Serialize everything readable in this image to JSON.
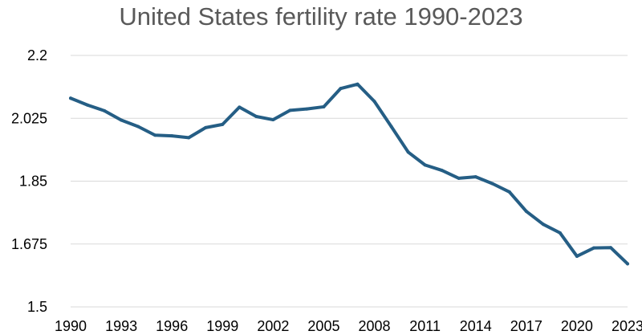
{
  "chart_data": {
    "type": "line",
    "title": "United States fertility rate 1990-2023",
    "xlabel": "",
    "ylabel": "",
    "ylim": [
      1.5,
      2.2
    ],
    "yticks": [
      "2.2",
      "2.025",
      "1.85",
      "1.675",
      "1.5"
    ],
    "ytick_values": [
      2.2,
      2.025,
      1.85,
      1.675,
      1.5
    ],
    "xticks": [
      "1990",
      "1993",
      "1996",
      "1999",
      "2002",
      "2005",
      "2008",
      "2011",
      "2014",
      "2017",
      "2020",
      "2023"
    ],
    "xtick_values": [
      1990,
      1993,
      1996,
      1999,
      2002,
      2005,
      2008,
      2011,
      2014,
      2017,
      2020,
      2023
    ],
    "grid": true,
    "legend": "none",
    "x": [
      1990,
      1991,
      1992,
      1993,
      1994,
      1995,
      1996,
      1997,
      1998,
      1999,
      2000,
      2001,
      2002,
      2003,
      2004,
      2005,
      2006,
      2007,
      2008,
      2009,
      2010,
      2011,
      2012,
      2013,
      2014,
      2015,
      2016,
      2017,
      2018,
      2019,
      2020,
      2021,
      2022,
      2023
    ],
    "series": [
      {
        "name": "Fertility rate",
        "color": "#255e85",
        "values": [
          2.081,
          2.062,
          2.046,
          2.02,
          2.002,
          1.978,
          1.976,
          1.971,
          1.999,
          2.008,
          2.056,
          2.03,
          2.021,
          2.047,
          2.051,
          2.057,
          2.108,
          2.12,
          2.072,
          2.002,
          1.931,
          1.895,
          1.88,
          1.858,
          1.862,
          1.843,
          1.82,
          1.766,
          1.73,
          1.706,
          1.641,
          1.664,
          1.665,
          1.62
        ]
      }
    ]
  }
}
